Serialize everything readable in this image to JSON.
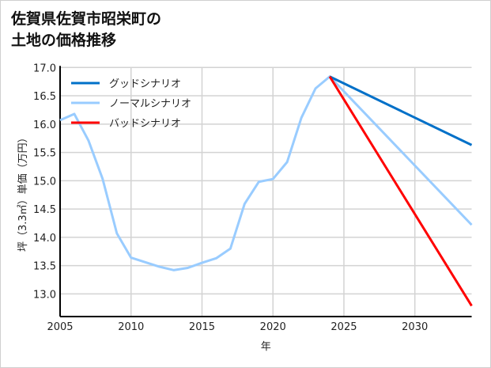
{
  "title_lines": [
    "佐賀県佐賀市昭栄町の",
    "土地の価格推移"
  ],
  "chart_data": {
    "type": "line",
    "title": "佐賀県佐賀市昭栄町の土地の価格推移",
    "xlabel": "年",
    "ylabel": "坪（3.3㎡）単価（万円）",
    "xlim": [
      2005,
      2034
    ],
    "ylim": [
      12.6,
      17.0
    ],
    "xticks": [
      2005,
      2010,
      2015,
      2020,
      2025,
      2030
    ],
    "yticks": [
      13.0,
      13.5,
      14.0,
      14.5,
      15.0,
      15.5,
      16.0,
      16.5,
      17.0
    ],
    "grid": true,
    "legend_position": "top-left",
    "series": [
      {
        "name": "グッドシナリオ",
        "color": "#0070c8",
        "x": [
          2024,
          2034
        ],
        "y": [
          16.84,
          15.63
        ]
      },
      {
        "name": "ノーマルシナリオ",
        "color": "#99ccff",
        "x": [
          2005,
          2006,
          2007,
          2008,
          2009,
          2010,
          2011,
          2012,
          2013,
          2014,
          2015,
          2016,
          2017,
          2018,
          2019,
          2020,
          2021,
          2022,
          2023,
          2024,
          2034
        ],
        "y": [
          16.07,
          16.18,
          15.71,
          15.03,
          14.07,
          13.64,
          13.56,
          13.48,
          13.42,
          13.46,
          13.55,
          13.63,
          13.8,
          14.59,
          14.98,
          15.03,
          15.33,
          16.11,
          16.63,
          16.84,
          14.22
        ]
      },
      {
        "name": "バッドシナリオ",
        "color": "#ff0000",
        "x": [
          2024,
          2034
        ],
        "y": [
          16.84,
          12.79
        ]
      }
    ]
  }
}
